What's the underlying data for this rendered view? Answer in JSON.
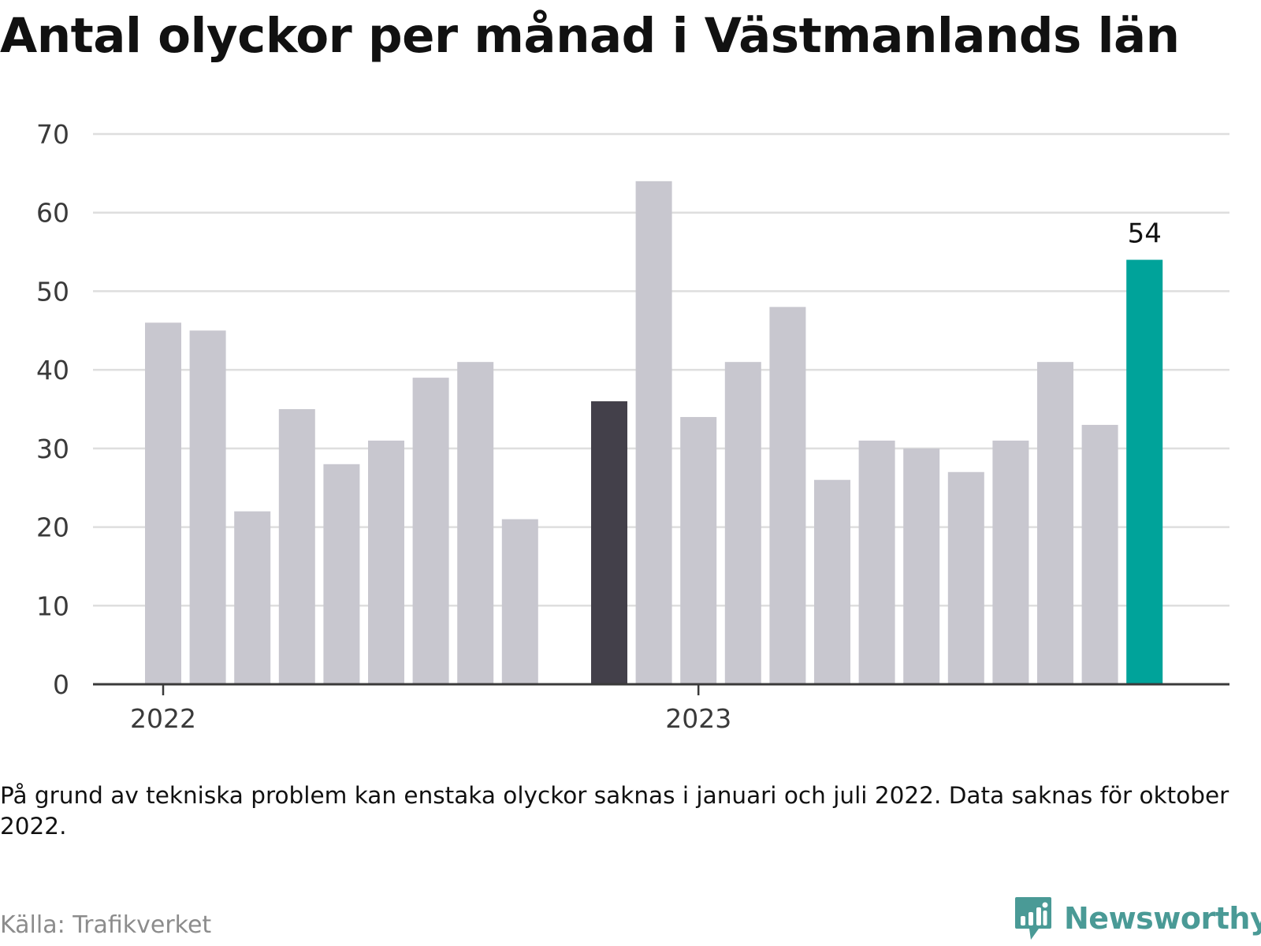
{
  "title": "Antal olyckor per månad i Västmanlands län",
  "chart_data": {
    "type": "bar",
    "title": "Antal olyckor per månad i Västmanlands län",
    "xlabel": "",
    "ylabel": "",
    "ylim": [
      0,
      70
    ],
    "yticks": [
      0,
      10,
      20,
      30,
      40,
      50,
      60,
      70
    ],
    "grid": true,
    "x_tick_labels": [
      "2022",
      "2023"
    ],
    "categories": [
      "2022-01",
      "2022-02",
      "2022-03",
      "2022-04",
      "2022-05",
      "2022-06",
      "2022-07",
      "2022-08",
      "2022-09",
      "2022-11",
      "2022-12",
      "2023-01",
      "2023-02",
      "2023-03",
      "2023-04",
      "2023-05",
      "2023-06",
      "2023-07",
      "2023-08",
      "2023-09",
      "2023-10",
      "2023-11"
    ],
    "values": [
      46,
      45,
      22,
      35,
      28,
      31,
      39,
      41,
      21,
      36,
      64,
      34,
      41,
      48,
      26,
      31,
      30,
      27,
      31,
      41,
      33,
      54
    ],
    "highlight": {
      "2022-11": "#43404a",
      "2023-11": "#00a39a"
    },
    "default_color": "#c8c7cf",
    "data_labels": {
      "2023-11": "54"
    }
  },
  "footnote": "På grund av tekniska problem kan enstaka olyckor saknas i januari och juli 2022. Data saknas för oktober 2022.",
  "source": "Källa: Trafikverket",
  "brand": {
    "name": "Newsworthy",
    "color": "#4a9a96",
    "icon": "bar-chart-speech-bubble-icon"
  }
}
